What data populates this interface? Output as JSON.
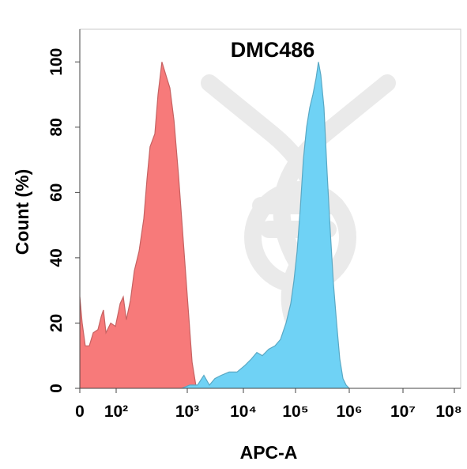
{
  "chart_data": {
    "type": "histogram-overlay",
    "title": "DMC486",
    "x_label": "APC-A",
    "y_label": "Count  (%)",
    "xlim": [
      0,
      100000000
    ],
    "ylim": [
      0,
      110
    ],
    "xticks": [
      0,
      {
        "value": 100,
        "label": "10²"
      },
      {
        "value": 1000,
        "label": "10³"
      },
      {
        "value": 10000,
        "label": "10⁴"
      },
      {
        "value": 100000,
        "label": "10⁵"
      },
      {
        "value": 1000000,
        "label": "10⁶"
      },
      {
        "value": 10000000,
        "label": "10⁷"
      },
      {
        "value": 100000000,
        "label": "10⁸"
      }
    ],
    "yticks": [
      0,
      20,
      40,
      60,
      80,
      100
    ],
    "series": [
      {
        "color": "#f77a7a",
        "x": [
          0,
          6.5,
          15,
          26,
          37,
          50,
          59,
          65,
          72,
          85,
          98,
          114,
          126,
          139,
          159,
          180,
          210,
          245,
          271,
          300,
          350,
          388,
          440,
          500,
          570,
          650,
          755,
          880,
          1034,
          1220,
          1420,
          1660
        ],
        "values": [
          28,
          20,
          13,
          13,
          17,
          18,
          22,
          24,
          17,
          20,
          19,
          26,
          28,
          21,
          27,
          36,
          42,
          52,
          64,
          74,
          78,
          90,
          100,
          96,
          92,
          82,
          65,
          45,
          25,
          8,
          1,
          0
        ]
      },
      {
        "color": "#6fd2f5",
        "x": [
          836,
          1102,
          1524,
          1975,
          2480,
          3110,
          4030,
          5570,
          7700,
          10700,
          14200,
          18100,
          23100,
          30600,
          40400,
          51500,
          65900,
          81100,
          93300,
          107000,
          122600,
          140000,
          160500,
          183900,
          210700,
          241300,
          267000,
          295600,
          338600,
          387900,
          444000,
          508500,
          582000,
          667000,
          763000,
          874000,
          1000000
        ],
        "values": [
          0,
          1,
          1,
          4,
          1,
          3,
          4,
          5,
          5,
          7,
          9,
          11,
          10,
          12,
          13,
          15,
          20,
          26,
          33,
          42,
          55,
          70,
          80,
          86,
          90,
          95,
          100,
          96,
          86,
          66,
          48,
          32,
          20,
          9,
          3,
          1,
          0
        ]
      }
    ]
  }
}
